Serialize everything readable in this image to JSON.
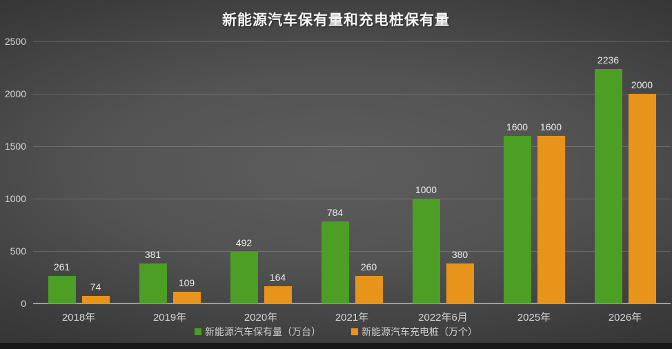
{
  "title": "新能源汽车保有量和充电桩保有量",
  "colors": {
    "vehicle_series": "#4c9f24",
    "charger_series": "#e8941a",
    "background_center": "#5d5d5d",
    "background_edge": "#232323",
    "axis_line": "#9e9e9e"
  },
  "chart_data": {
    "type": "bar",
    "title": "新能源汽车保有量和充电桩保有量",
    "categories": [
      "2018年",
      "2019年",
      "2020年",
      "2021年",
      "2022年6月",
      "2025年",
      "2026年"
    ],
    "series": [
      {
        "name": "新能源汽车保有量（万台）",
        "color": "#4c9f24",
        "values": [
          261,
          381,
          492,
          784,
          1000,
          1600,
          2236
        ]
      },
      {
        "name": "新能源汽车充电桩（万个）",
        "color": "#e8941a",
        "values": [
          74,
          109,
          164,
          260,
          380,
          1600,
          2000
        ]
      }
    ],
    "xlabel": "",
    "ylabel": "",
    "ylim": [
      0,
      2500
    ],
    "y_ticks": [
      0,
      500,
      1000,
      1500,
      2000,
      2500
    ],
    "grid": true,
    "legend_position": "bottom",
    "bar_value_labels": true
  }
}
